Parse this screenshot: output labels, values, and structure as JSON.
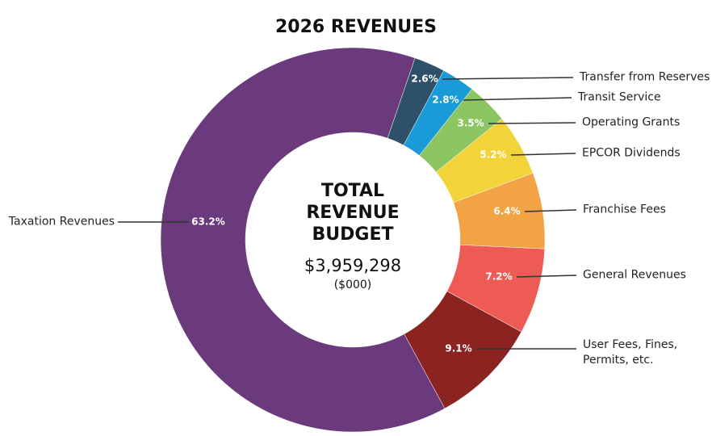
{
  "chart_data": {
    "type": "donut",
    "title": "2026 REVENUES",
    "center_title_lines": [
      "TOTAL",
      "REVENUE",
      "BUDGET"
    ],
    "center_value": "$3,959,298",
    "center_unit": "($000)",
    "categories": [
      "Transfer from Reserves",
      "Transit Service",
      "Operating Grants",
      "EPCOR Dividends",
      "Franchise Fees",
      "General Revenues",
      "User Fees, Fines, Permits, etc.",
      "Taxation Revenues"
    ],
    "values": [
      2.6,
      2.8,
      3.5,
      5.2,
      6.4,
      7.2,
      9.1,
      63.2
    ],
    "value_labels": [
      "2.6%",
      "2.8%",
      "3.5%",
      "5.2%",
      "6.4%",
      "7.2%",
      "9.1%",
      "63.2%"
    ],
    "colors": [
      "#2e5068",
      "#1a9ad6",
      "#8cc663",
      "#f2d43a",
      "#f2a444",
      "#ee5b55",
      "#8b2320",
      "#6b3a7d"
    ]
  }
}
